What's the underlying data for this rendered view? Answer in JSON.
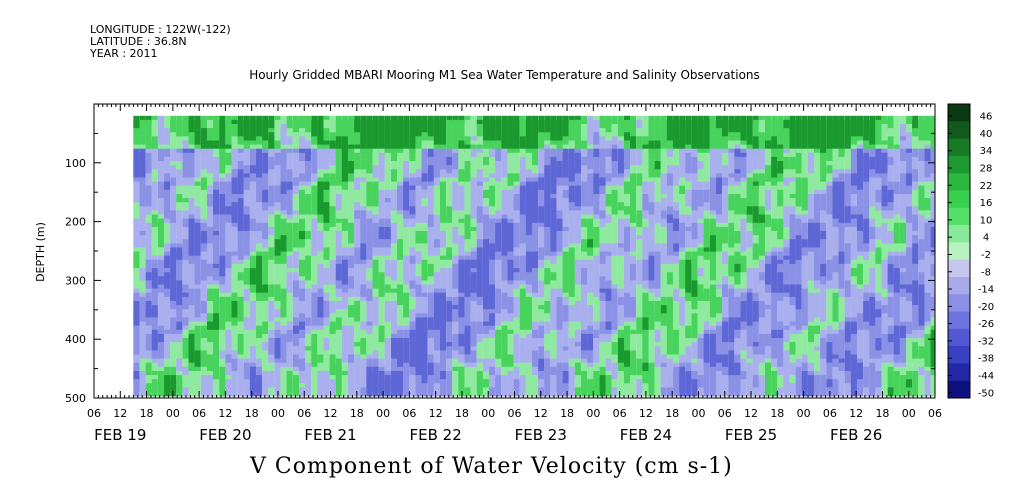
{
  "header": {
    "longitude": "LONGITUDE : 122W(-122)",
    "latitude": "LATITUDE : 36.8N",
    "year": "YEAR : 2011"
  },
  "chart_data": {
    "type": "heatmap",
    "title": "Hourly Gridded MBARI Mooring M1 Sea Water Temperature and Salinity Observations",
    "xlabel": "V Component of Water Velocity (cm s-1)",
    "ylabel": "DEPTH (m)",
    "y_range": [
      0,
      500
    ],
    "y_inverted": true,
    "y_ticks": [
      100,
      200,
      300,
      400,
      500
    ],
    "x_hour_ticks": [
      "06",
      "12",
      "18",
      "00",
      "06",
      "12",
      "18",
      "00",
      "06",
      "12",
      "18",
      "00",
      "06",
      "12",
      "18",
      "00",
      "06",
      "12",
      "18",
      "00",
      "06",
      "12",
      "18",
      "00",
      "06",
      "12",
      "18",
      "00",
      "06",
      "12",
      "18",
      "00",
      "06"
    ],
    "x_date_labels": [
      "FEB 19",
      "FEB 20",
      "FEB 21",
      "FEB 22",
      "FEB 23",
      "FEB 24",
      "FEB 25",
      "FEB 26"
    ],
    "x_range_hours_from_feb19_00": [
      6,
      198
    ],
    "data_start_hour": 15,
    "data_depth_range": [
      20,
      485
    ],
    "colorbar_levels": [
      "46",
      "40",
      "34",
      "28",
      "22",
      "16",
      "10",
      "4",
      "-2",
      "-8",
      "-14",
      "-20",
      "-26",
      "-32",
      "-38",
      "-44",
      "-50"
    ],
    "colorbar_colors": [
      "#0b3a12",
      "#0f5a1c",
      "#167a26",
      "#1d9a31",
      "#2bb83f",
      "#39d04f",
      "#55e06a",
      "#86ea98",
      "#b8f2c0",
      "#c7c7ee",
      "#a9aaea",
      "#8c8fe5",
      "#6e74dd",
      "#5158d2",
      "#3a40c2",
      "#2329a6",
      "#0e1280"
    ],
    "field_colors": {
      "strong_pos": "#1a9a2e",
      "pos": "#47d35c",
      "weak_pos": "#8feaa0",
      "weak_neg": "#aab0ee",
      "neg": "#8b92e6",
      "strong_neg": "#5e67d6"
    }
  }
}
